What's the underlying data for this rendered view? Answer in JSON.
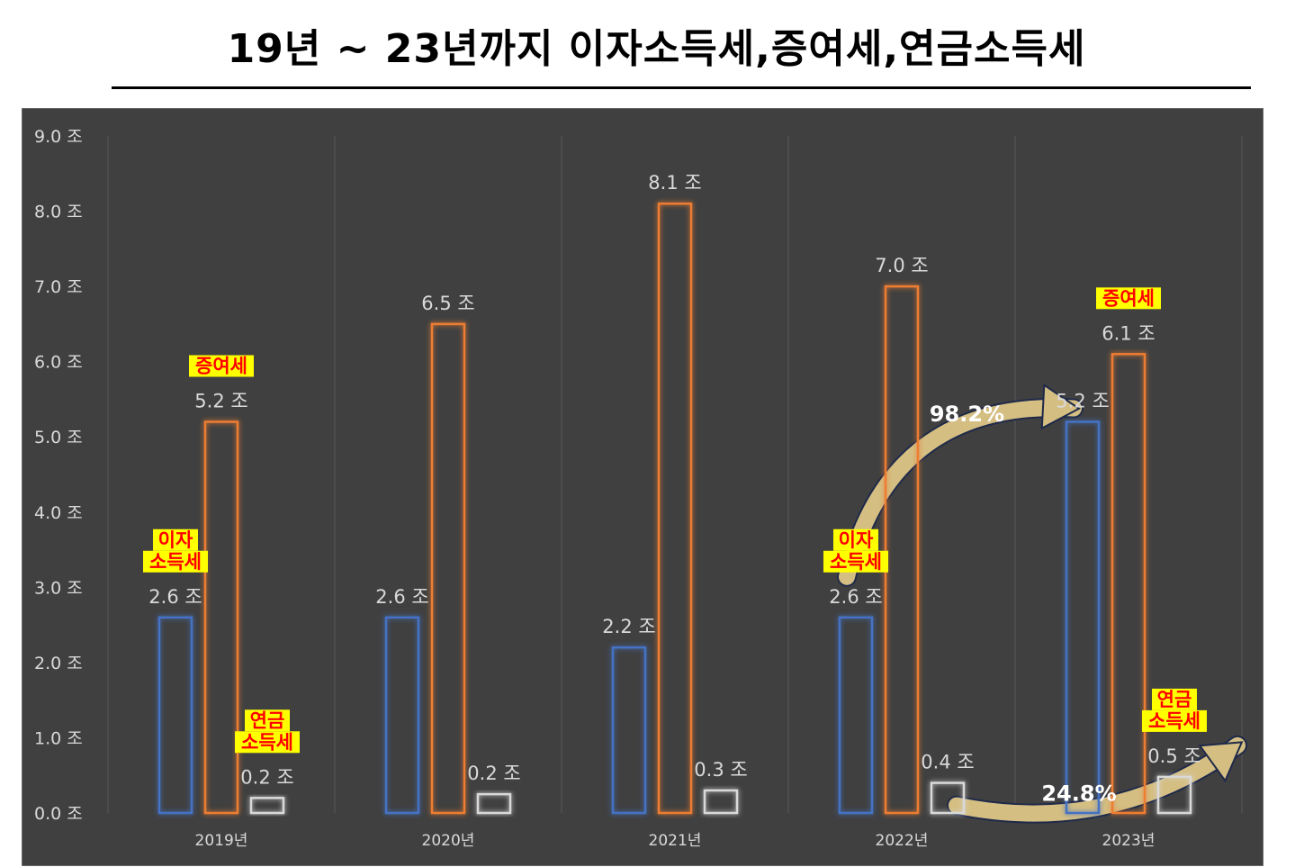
{
  "title": "19년 ~ 23년까지 이자소득세,증여세,연금소득세",
  "colors": {
    "background": "#404040",
    "interest": "#4472C4",
    "gift": "#ED7D31",
    "pension": "#D9D9D9",
    "callout_fill": "#FFFF00",
    "callout_text": "#FF0000",
    "arrow_fill": "#D4BE82",
    "arrow_stroke": "#1F2A4A"
  },
  "chart_data": {
    "type": "bar",
    "categories": [
      "2019년",
      "2020년",
      "2021년",
      "2022년",
      "2023년"
    ],
    "series": [
      {
        "name": "이자소득세",
        "values": [
          2.6,
          2.6,
          2.2,
          2.6,
          5.2
        ],
        "labels": [
          "2.6 조",
          "2.6 조",
          "2.2 조",
          "2.6 조",
          "5.2 조"
        ]
      },
      {
        "name": "증여세",
        "values": [
          5.2,
          6.5,
          8.1,
          7.0,
          6.1
        ],
        "labels": [
          "5.2 조",
          "6.5 조",
          "8.1 조",
          "7.0 조",
          "6.1 조"
        ]
      },
      {
        "name": "연금소득세",
        "values": [
          0.2,
          0.25,
          0.3,
          0.4,
          0.48
        ],
        "labels": [
          "0.2 조",
          "0.2 조",
          "0.3 조",
          "0.4 조",
          "0.5 조"
        ]
      }
    ],
    "ylim": [
      0,
      9
    ],
    "yticks": [
      "0.0 조",
      "1.0 조",
      "2.0 조",
      "3.0 조",
      "4.0 조",
      "5.0 조",
      "6.0 조",
      "7.0 조",
      "8.0 조",
      "9.0 조"
    ],
    "grid": "vertical",
    "legend": "none",
    "annotations": {
      "callouts": [
        {
          "lines": [
            "이자",
            "소득세"
          ],
          "category": 0,
          "series": 0
        },
        {
          "lines": [
            "증여세"
          ],
          "category": 0,
          "series": 1
        },
        {
          "lines": [
            "연금",
            "소득세"
          ],
          "category": 0,
          "series": 2
        },
        {
          "lines": [
            "이자",
            "소득세"
          ],
          "category": 3,
          "series": 0
        },
        {
          "lines": [
            "증여세"
          ],
          "category": 4,
          "series": 1
        },
        {
          "lines": [
            "연금",
            "소득세"
          ],
          "category": 4,
          "series": 2
        }
      ],
      "growth": [
        {
          "text": "98.2%",
          "from_category": 3,
          "to_category": 4,
          "series": 0
        },
        {
          "text": "24.8%",
          "from_category": 3,
          "to_category": 4,
          "series": 2
        }
      ]
    }
  }
}
